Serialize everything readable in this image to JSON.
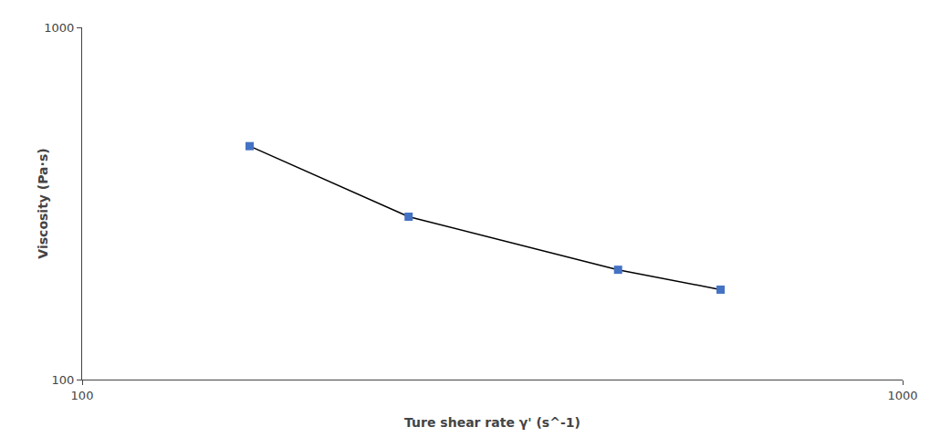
{
  "chart_data": {
    "type": "line",
    "xlabel": "Ture shear rate γ' (s^-1)",
    "ylabel": "Viscosity (Pa·s)",
    "x": [
      160,
      250,
      450,
      600
    ],
    "values": [
      460,
      290,
      205,
      180
    ],
    "color": "#000000",
    "colors": [
      "#4472C4",
      "#4472C4",
      "#4472C4",
      "#4472C4"
    ],
    "marker": "square",
    "log": true,
    "xlim": [
      100,
      1000
    ],
    "ylim": [
      100,
      1000
    ],
    "xticks": [
      100,
      1000
    ],
    "yticks": [
      100,
      1000
    ],
    "grid": false
  }
}
